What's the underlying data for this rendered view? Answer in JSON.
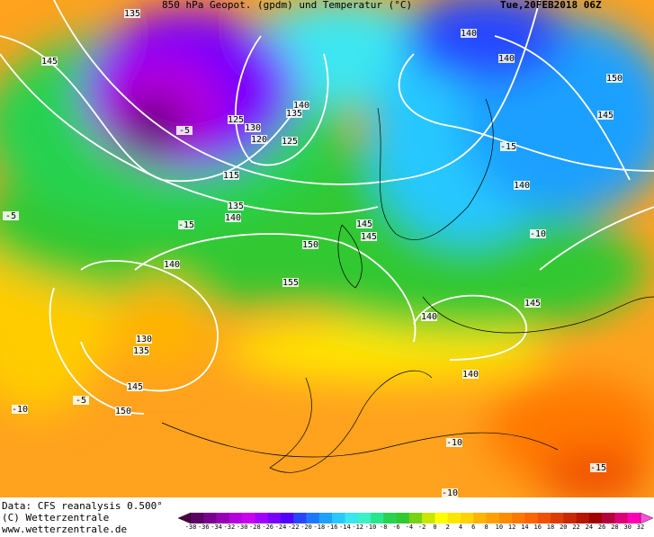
{
  "header": {
    "title": "850 hPa Geopot. (gpdm) und Temperatur (°C)",
    "date": "Tue,20FEB2018 06Z"
  },
  "contour_labels": [
    "135",
    "145",
    "140",
    "140",
    "150",
    "145",
    "140",
    "135",
    "125",
    "130",
    "120",
    "125",
    "115",
    "135",
    "140",
    "-5",
    "-15",
    "145",
    "145",
    "150",
    "155",
    "140",
    "140",
    "130",
    "135",
    "145",
    "150",
    "140",
    "145",
    "140",
    "-15",
    "-10",
    "-5",
    "-10",
    "-5",
    "-10",
    "-15",
    "-10"
  ],
  "footer": {
    "lines": [
      "Data: CFS reanalysis 0.500°",
      "(C) Wetterzentrale",
      "www.wetterzentrale.de"
    ]
  },
  "colorbar": {
    "ticks": [
      -38,
      -36,
      -34,
      -32,
      -30,
      -28,
      -26,
      -24,
      -22,
      -20,
      -18,
      -16,
      -14,
      -12,
      -10,
      -8,
      -6,
      -4,
      -2,
      0,
      2,
      4,
      6,
      8,
      10,
      12,
      14,
      16,
      18,
      20,
      22,
      24,
      26,
      28,
      30,
      32
    ],
    "colors": [
      "#4a0040",
      "#5a0062",
      "#78008c",
      "#9600b4",
      "#b400dc",
      "#c800f0",
      "#a000ff",
      "#7800ff",
      "#5000ff",
      "#2846ff",
      "#1e78ff",
      "#1ea0ff",
      "#28c8ff",
      "#3ce6f0",
      "#3cf0c8",
      "#28e68c",
      "#28d250",
      "#32c832",
      "#78d214",
      "#c8e600",
      "#ffff00",
      "#ffe600",
      "#ffd200",
      "#ffb400",
      "#ffa000",
      "#ff8c00",
      "#ff7800",
      "#ff6400",
      "#f05000",
      "#dc3c00",
      "#c82800",
      "#b41400",
      "#a00000",
      "#b4003c",
      "#dc0078",
      "#ff00b4",
      "#ff50dc"
    ]
  }
}
